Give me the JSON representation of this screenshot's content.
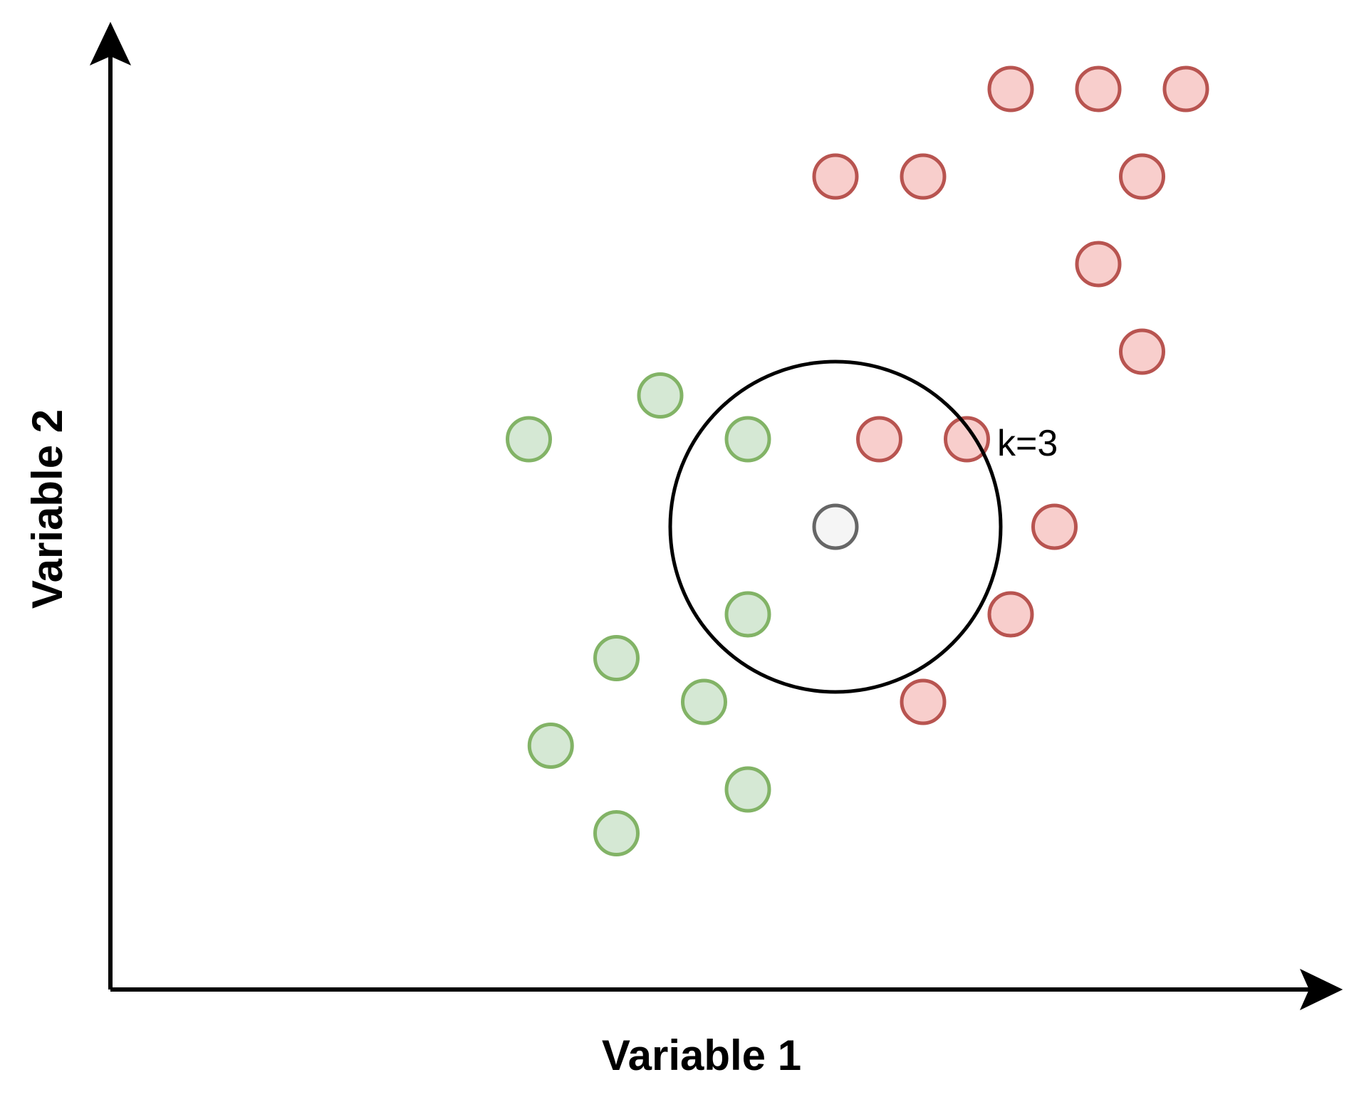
{
  "axes": {
    "x_label": "Variable 1",
    "y_label": "Variable 2"
  },
  "annotation": {
    "k_label": "k=3"
  },
  "colors": {
    "class_a_fill": "#f8cecc",
    "class_a_stroke": "#b85450",
    "class_b_fill": "#d5e8d4",
    "class_b_stroke": "#82b366",
    "query_fill": "#f5f5f5",
    "query_stroke": "#666666"
  },
  "points": {
    "class_a": [
      [
        1,
        10
      ],
      [
        1.5,
        10
      ],
      [
        2,
        10
      ],
      [
        0,
        9
      ],
      [
        0.5,
        9
      ],
      [
        1.75,
        9
      ],
      [
        1.5,
        8
      ],
      [
        1.75,
        7
      ],
      [
        0.25,
        6
      ],
      [
        0.75,
        6
      ],
      [
        1.25,
        5
      ],
      [
        1,
        4
      ],
      [
        0.5,
        3
      ]
    ],
    "class_b": [
      [
        -1.75,
        6
      ],
      [
        -1,
        6.5
      ],
      [
        -0.5,
        6
      ],
      [
        -0.5,
        4
      ],
      [
        -1.25,
        3.5
      ],
      [
        -0.75,
        3
      ],
      [
        -1.625,
        2.5
      ],
      [
        -0.5,
        2
      ],
      [
        -1.25,
        1.5
      ]
    ],
    "query": [
      0,
      5
    ]
  },
  "neighborhood_k": 3
}
